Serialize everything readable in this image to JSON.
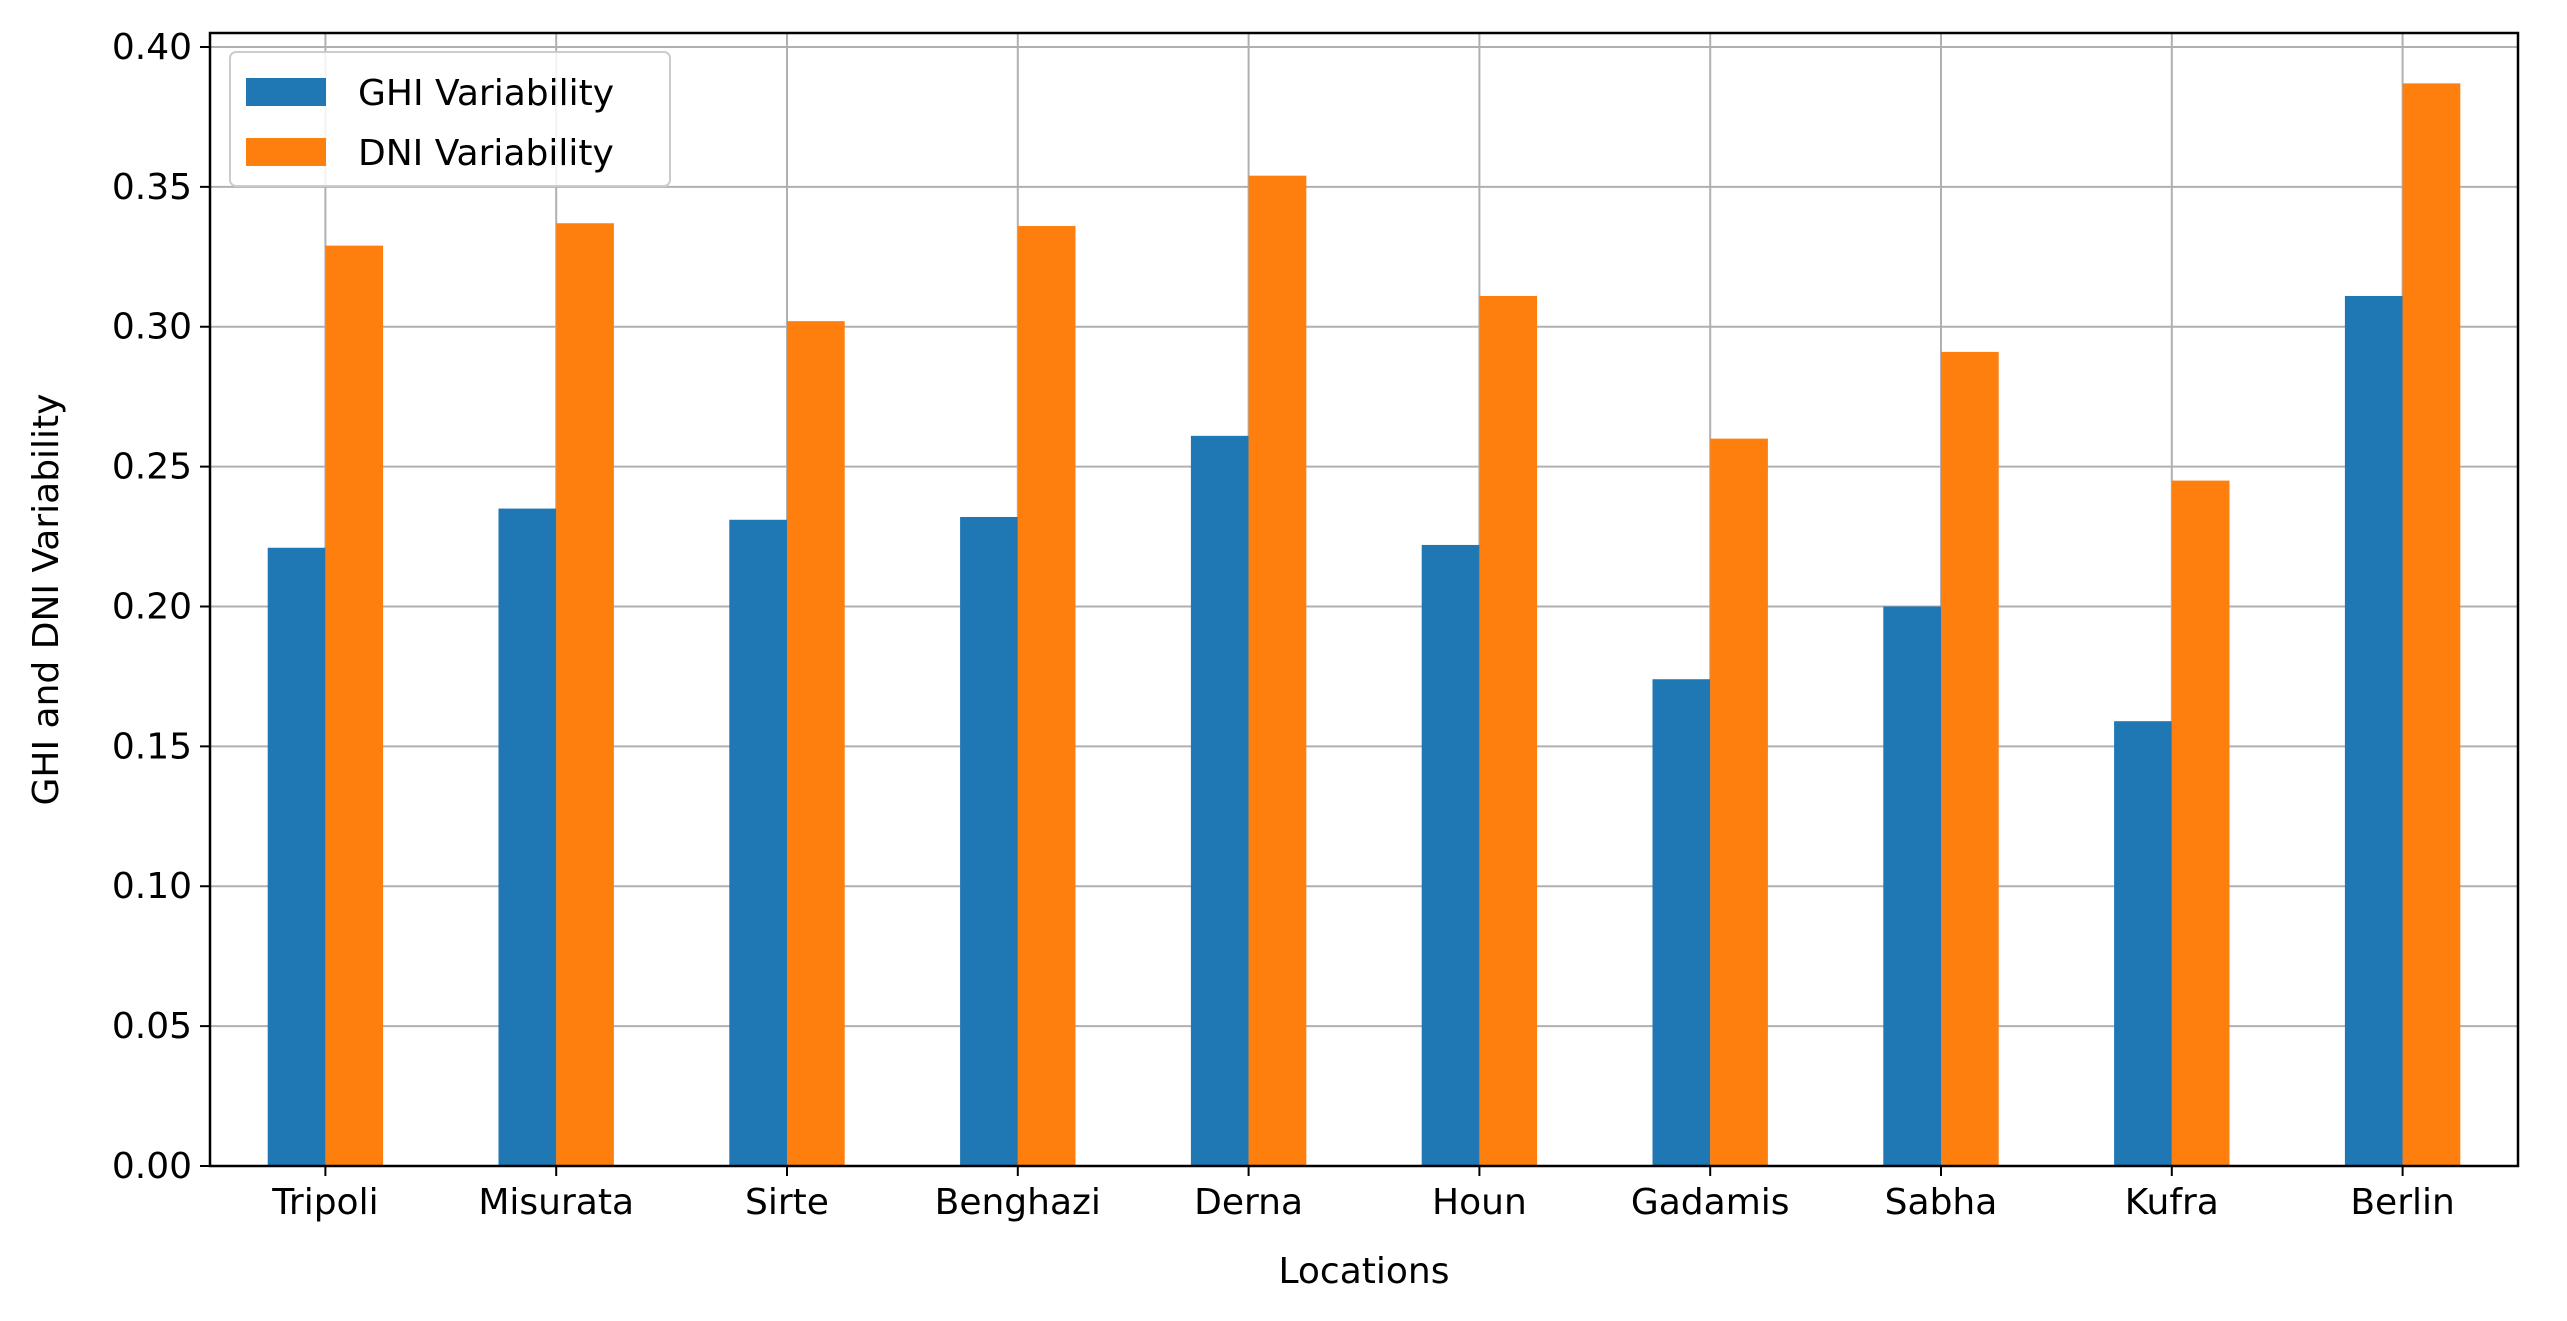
{
  "chart_data": {
    "type": "bar",
    "title": "",
    "xlabel": "Locations",
    "ylabel": "GHI and DNI Variability",
    "categories": [
      "Tripoli",
      "Misurata",
      "Sirte",
      "Benghazi",
      "Derna",
      "Houn",
      "Gadamis",
      "Sabha",
      "Kufra",
      "Berlin"
    ],
    "series": [
      {
        "name": "GHI Variability",
        "color": "#1f77b4",
        "values": [
          0.221,
          0.235,
          0.231,
          0.232,
          0.261,
          0.222,
          0.174,
          0.2,
          0.159,
          0.311
        ]
      },
      {
        "name": "DNI Variability",
        "color": "#ff7f0e",
        "values": [
          0.329,
          0.337,
          0.302,
          0.336,
          0.354,
          0.311,
          0.26,
          0.291,
          0.245,
          0.387
        ]
      }
    ],
    "ylim": [
      0,
      0.405
    ],
    "yticks": [
      "0.00",
      "0.05",
      "0.10",
      "0.15",
      "0.20",
      "0.25",
      "0.30",
      "0.35",
      "0.40"
    ],
    "grid": true,
    "legend_position": "top-left"
  }
}
